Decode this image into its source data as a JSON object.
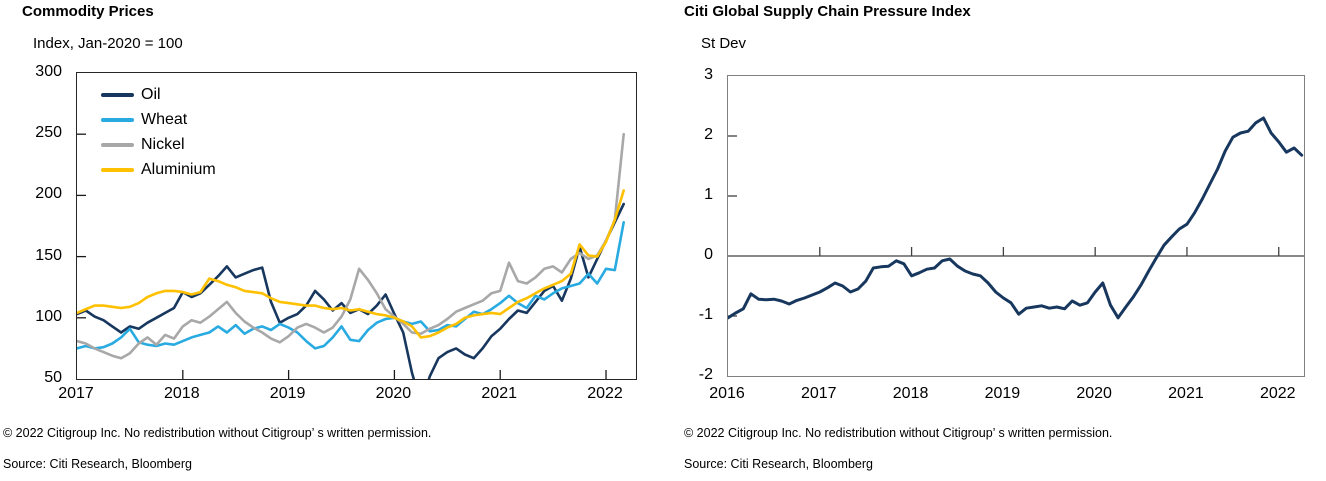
{
  "chart_data": [
    {
      "type": "line",
      "title": "Commodity Prices",
      "subtitle": "Index, Jan-2020 = 100",
      "copyright": "© 2022 Citigroup Inc. No redistribution without Citigroup’ s written permission.",
      "source": "Source: Citi Research, Bloomberg",
      "x_unit": "monthly, Jan 2017 – Mar 2022",
      "x_domain": [
        0,
        63.4
      ],
      "x_ticks": [
        {
          "m": 0,
          "label": "2017"
        },
        {
          "m": 12,
          "label": "2018"
        },
        {
          "m": 24,
          "label": "2019"
        },
        {
          "m": 36,
          "label": "2020"
        },
        {
          "m": 48,
          "label": "2021"
        },
        {
          "m": 60,
          "label": "2022"
        }
      ],
      "ylim": [
        50,
        300
      ],
      "y_ticks": [
        300,
        250,
        200,
        150,
        100,
        50
      ],
      "grid": false,
      "zero_line": false,
      "legend_position": "top-left-inside",
      "axis_color": "#1a1a1a",
      "line_width": 2.6,
      "series": [
        {
          "name": "Oil",
          "color": "#17375E",
          "values": [
            103,
            106,
            101,
            98,
            93,
            88,
            93,
            91,
            96,
            100,
            104,
            108,
            121,
            117,
            120,
            127,
            134,
            142,
            133,
            136,
            139,
            141,
            113,
            96,
            100,
            103,
            110,
            122,
            115,
            106,
            112,
            104,
            107,
            103,
            110,
            119,
            103,
            88,
            55,
            30,
            52,
            67,
            72,
            75,
            70,
            67,
            75,
            85,
            91,
            99,
            106,
            104,
            113,
            122,
            126,
            114,
            132,
            158,
            133,
            148,
            163,
            178,
            193
          ]
        },
        {
          "name": "Wheat",
          "color": "#29ABE2",
          "values": [
            75,
            77,
            75,
            76,
            79,
            84,
            91,
            80,
            78,
            77,
            79,
            78,
            81,
            84,
            86,
            88,
            93,
            88,
            94,
            87,
            91,
            93,
            90,
            95,
            92,
            88,
            81,
            75,
            77,
            84,
            93,
            82,
            81,
            90,
            96,
            99,
            100,
            97,
            95,
            97,
            89,
            90,
            94,
            93,
            99,
            105,
            103,
            107,
            112,
            118,
            112,
            108,
            118,
            115,
            120,
            124,
            126,
            128,
            136,
            128,
            140,
            139,
            178
          ]
        },
        {
          "name": "Nickel",
          "color": "#A8A8A8",
          "values": [
            81,
            79,
            75,
            72,
            69,
            67,
            71,
            79,
            84,
            78,
            86,
            83,
            93,
            98,
            96,
            101,
            107,
            113,
            104,
            97,
            92,
            88,
            83,
            80,
            85,
            92,
            95,
            92,
            88,
            92,
            101,
            115,
            140,
            131,
            120,
            107,
            101,
            95,
            88,
            87,
            91,
            94,
            99,
            105,
            108,
            111,
            114,
            120,
            122,
            145,
            130,
            128,
            133,
            140,
            142,
            137,
            148,
            153,
            148,
            151,
            163,
            180,
            250
          ]
        },
        {
          "name": "Aluminium",
          "color": "#FFC000",
          "values": [
            104,
            107,
            110,
            110,
            109,
            108,
            109,
            112,
            117,
            120,
            122,
            122,
            121,
            119,
            121,
            132,
            130,
            127,
            125,
            122,
            121,
            120,
            116,
            113,
            112,
            111,
            110,
            110,
            108,
            107,
            108,
            106,
            107,
            105,
            103,
            102,
            100,
            97,
            93,
            84,
            85,
            88,
            92,
            95,
            100,
            102,
            103,
            104,
            103,
            108,
            113,
            116,
            120,
            124,
            127,
            130,
            136,
            160,
            151,
            150,
            162,
            180,
            204
          ]
        }
      ]
    },
    {
      "type": "line",
      "title": "Citi Global Supply Chain Pressure Index",
      "subtitle": "St Dev",
      "copyright": "© 2022 Citigroup Inc. No redistribution without Citigroup’ s written permission.",
      "source": "Source: Citi Research, Bloomberg",
      "x_unit": "monthly, Jan 2016 – Apr 2022",
      "x_domain": [
        0,
        75.3
      ],
      "x_ticks": [
        {
          "m": 0,
          "label": "2016"
        },
        {
          "m": 12,
          "label": "2017"
        },
        {
          "m": 24,
          "label": "2018"
        },
        {
          "m": 36,
          "label": "2019"
        },
        {
          "m": 48,
          "label": "2020"
        },
        {
          "m": 60,
          "label": "2021"
        },
        {
          "m": 72,
          "label": "2022"
        }
      ],
      "ylim": [
        -2,
        3
      ],
      "y_ticks": [
        3,
        2,
        1,
        0,
        -1,
        -2
      ],
      "grid": false,
      "zero_line": true,
      "legend_position": "none",
      "axis_color": "#404040",
      "line_width": 3,
      "series": [
        {
          "name": "Citi Global Supply Chain Pressure Index",
          "color": "#17375E",
          "values": [
            -1.03,
            -0.95,
            -0.88,
            -0.63,
            -0.72,
            -0.73,
            -0.72,
            -0.75,
            -0.8,
            -0.74,
            -0.7,
            -0.65,
            -0.6,
            -0.53,
            -0.45,
            -0.5,
            -0.6,
            -0.55,
            -0.42,
            -0.2,
            -0.18,
            -0.17,
            -0.08,
            -0.13,
            -0.33,
            -0.28,
            -0.22,
            -0.2,
            -0.08,
            -0.05,
            -0.17,
            -0.25,
            -0.3,
            -0.33,
            -0.45,
            -0.6,
            -0.7,
            -0.78,
            -0.97,
            -0.87,
            -0.85,
            -0.83,
            -0.87,
            -0.85,
            -0.88,
            -0.75,
            -0.82,
            -0.78,
            -0.6,
            -0.45,
            -0.82,
            -1.03,
            -0.85,
            -0.68,
            -0.48,
            -0.25,
            -0.03,
            0.18,
            0.32,
            0.45,
            0.53,
            0.72,
            0.95,
            1.2,
            1.45,
            1.75,
            1.98,
            2.05,
            2.08,
            2.22,
            2.3,
            2.05,
            1.9,
            1.73,
            1.8,
            1.68
          ]
        }
      ]
    }
  ]
}
